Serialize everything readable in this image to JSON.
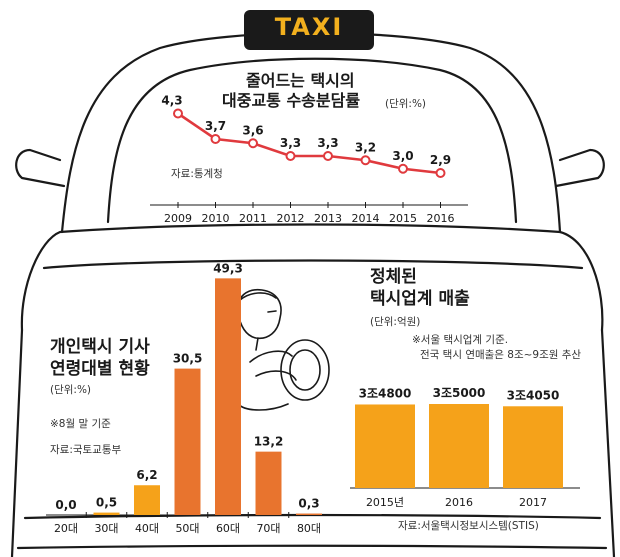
{
  "taxi_sign": "TAXI",
  "colors": {
    "orange": "#E8742E",
    "amber": "#F5A21A",
    "line": "#E03A3E",
    "sign": "#1A1A1A",
    "sign_text": "#F2B01E"
  },
  "charts": {
    "share": {
      "title_line1": "줄어드는 택시의",
      "title_line2": "대중교통 수송분담률",
      "unit": "(단위:%)",
      "source": "자료:통계청"
    },
    "age": {
      "title_line1": "개인택시 기사",
      "title_line2": "연령대별 현황",
      "unit": "(단위:%)",
      "note": "※8월 말 기준",
      "source": "자료:국토교통부"
    },
    "sales": {
      "title_line1": "정체된",
      "title_line2": "택시업계 매출",
      "unit": "(단위:억원)",
      "note_line1": "※서울 택시업계 기준.",
      "note_line2": "전국 택시 연매출은 8조~9조원 추산",
      "source": "자료:서울택시정보시스템(STIS)"
    }
  },
  "chart_data": [
    {
      "type": "line",
      "title": "줄어드는 택시의 대중교통 수송분담률",
      "ylabel": "(단위:%)",
      "x": [
        "2009",
        "2010",
        "2011",
        "2012",
        "2013",
        "2014",
        "2015",
        "2016"
      ],
      "values": [
        4.3,
        3.7,
        3.6,
        3.3,
        3.3,
        3.2,
        3.0,
        2.9
      ],
      "labels": [
        "4,3",
        "3,7",
        "3,6",
        "3,3",
        "3,3",
        "3,2",
        "3,0",
        "2,9"
      ],
      "ylim": [
        2.5,
        4.5
      ],
      "grid": false,
      "color": "#E03A3E"
    },
    {
      "type": "bar",
      "title": "개인택시 기사 연령대별 현황",
      "ylabel": "(단위:%)",
      "categories": [
        "20대",
        "30대",
        "40대",
        "50대",
        "60대",
        "70대",
        "80대"
      ],
      "values": [
        0.0,
        0.5,
        6.2,
        30.5,
        49.3,
        13.2,
        0.3
      ],
      "labels": [
        "0,0",
        "0,5",
        "6,2",
        "30,5",
        "49,3",
        "13,2",
        "0,3"
      ],
      "ylim": [
        0,
        50
      ],
      "grid": false,
      "colors": [
        "#E8742E",
        "#F5A21A",
        "#F5A21A",
        "#E8742E",
        "#E8742E",
        "#E8742E",
        "#E8742E"
      ]
    },
    {
      "type": "bar",
      "title": "정체된 택시업계 매출",
      "ylabel": "(단위:억원)",
      "categories": [
        "2015년",
        "2016",
        "2017"
      ],
      "values": [
        34800,
        35000,
        34050
      ],
      "labels": [
        "3조4800",
        "3조5000",
        "3조4050"
      ],
      "grid": false,
      "color": "#F5A21A"
    }
  ]
}
